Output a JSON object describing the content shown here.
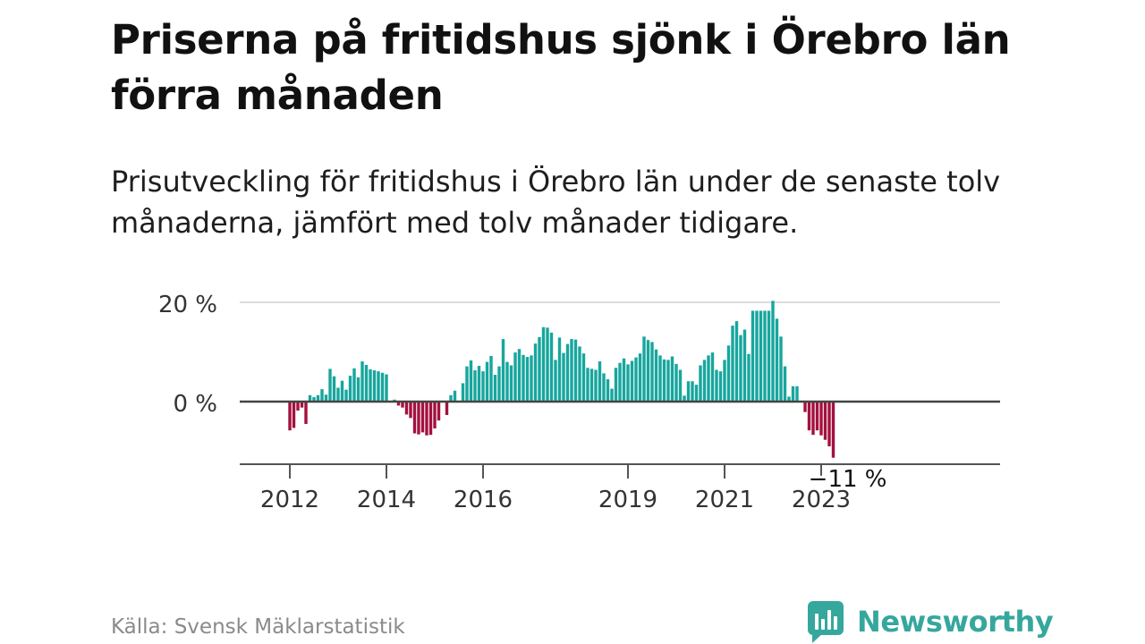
{
  "title": "Priserna på fritidshus sjönk i Örebro län förra månaden",
  "subtitle": "Prisutveckling för fritidshus i Örebro län under de senaste tolv månaderna, jämfört med tolv månader tidigare.",
  "source": "Källa: Svensk Mäklarstatistik",
  "brand": {
    "name": "Newsworthy",
    "icon": "newsworthy-logo-icon"
  },
  "colors": {
    "positive": "#17a69d",
    "negative": "#a3113f",
    "grid": "#dddddd",
    "axis": "#444444"
  },
  "chart_data": {
    "type": "bar",
    "title": "",
    "xlabel": "",
    "ylabel": "",
    "ylim": [
      -12.5,
      20
    ],
    "y_ticks": [
      {
        "value": 0,
        "label": "0 %"
      },
      {
        "value": 20,
        "label": "20 %"
      }
    ],
    "x_ticks": [
      {
        "month": "2012-01",
        "label": "2012"
      },
      {
        "month": "2014-01",
        "label": "2014"
      },
      {
        "month": "2016-01",
        "label": "2016"
      },
      {
        "month": "2019-01",
        "label": "2019"
      },
      {
        "month": "2021-01",
        "label": "2021"
      },
      {
        "month": "2023-01",
        "label": "2023"
      }
    ],
    "first_month": "2011-10",
    "last_month": "2023-08",
    "annotation": {
      "month": "2023-08",
      "label": "−11 %"
    },
    "grid": "horizontal",
    "series": [
      {
        "values": [
          null,
          null,
          null,
          -5.8,
          -5.3,
          -1.8,
          -1.2,
          -4.5,
          1.3,
          0.9,
          1.3,
          2.5,
          1.4,
          6.6,
          5.1,
          2.8,
          4.2,
          2.4,
          5.2,
          6.7,
          4.9,
          8.1,
          7.4,
          6.5,
          6.3,
          6.1,
          5.8,
          5.5,
          0,
          0.4,
          -0.8,
          -1.2,
          -2.6,
          -3.3,
          -6.4,
          -6.6,
          -6.2,
          -6.8,
          -6.7,
          -5.4,
          -3.8,
          0,
          -2.7,
          1.3,
          2.2,
          0,
          3.7,
          7.1,
          8.3,
          6.3,
          7.2,
          6.1,
          8.0,
          9.2,
          5.4,
          7.1,
          12.6,
          8.0,
          7.3,
          9.9,
          10.6,
          9.4,
          9.0,
          9.3,
          11.7,
          13.0,
          15.0,
          14.9,
          13.9,
          8.4,
          12.9,
          9.8,
          11.6,
          12.6,
          12.5,
          11.1,
          9.7,
          6.8,
          6.6,
          6.4,
          8.1,
          5.7,
          4.5,
          2.6,
          6.8,
          7.8,
          8.7,
          7.5,
          8.2,
          8.9,
          9.7,
          13.1,
          12.4,
          12.0,
          10.5,
          9.3,
          8.5,
          8.4,
          9.1,
          7.6,
          6.4,
          1.2,
          4.1,
          4.1,
          3.4,
          7.3,
          8.4,
          9.3,
          9.9,
          6.4,
          6.1,
          8.4,
          11.3,
          15.3,
          16.2,
          13.4,
          14.5,
          9.6,
          18.3,
          18.3,
          18.3,
          18.3,
          18.3,
          20.3,
          16.7,
          13.1,
          7.1,
          1.0,
          3.1,
          3.1,
          0,
          -2.1,
          -5.8,
          -6.7,
          -5.8,
          -6.8,
          -7.7,
          -9.0,
          -11.3
        ]
      }
    ]
  }
}
